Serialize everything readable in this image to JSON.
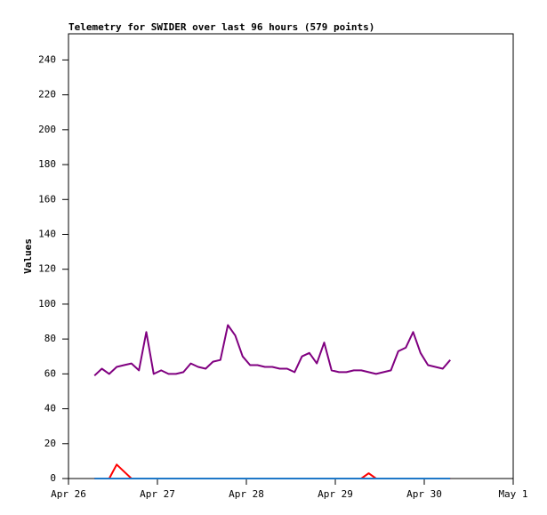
{
  "chart_data": {
    "type": "line",
    "title": "Telemetry for SWIDER over last 96 hours (579 points)",
    "y_label": "Values",
    "x": [
      7,
      9,
      11,
      13,
      15,
      17,
      19,
      21,
      23,
      25,
      27,
      29,
      31,
      33,
      35,
      37,
      39,
      41,
      43,
      45,
      47,
      49,
      51,
      53,
      55,
      57,
      59,
      61,
      63,
      65,
      67,
      69,
      71,
      73,
      75,
      77,
      79,
      81,
      83,
      85,
      87,
      89,
      91,
      93,
      95,
      97,
      99,
      101,
      103
    ],
    "xlim": [
      0,
      120
    ],
    "xticks": [
      {
        "value": 0,
        "label": "Apr 26"
      },
      {
        "value": 24,
        "label": "Apr 27"
      },
      {
        "value": 48,
        "label": "Apr 28"
      },
      {
        "value": 72,
        "label": "Apr 29"
      },
      {
        "value": 96,
        "label": "Apr 30"
      },
      {
        "value": 120,
        "label": "May 1"
      }
    ],
    "ylim": [
      0,
      255
    ],
    "yticks": [
      0,
      20,
      40,
      60,
      80,
      100,
      120,
      140,
      160,
      180,
      200,
      220,
      240
    ],
    "series": [
      {
        "color": "#800080",
        "values": [
          59,
          63,
          60,
          64,
          65,
          66,
          62,
          84,
          60,
          62,
          60,
          60,
          61,
          66,
          64,
          63,
          67,
          68,
          88,
          82,
          70,
          65,
          65,
          64,
          64,
          63,
          63,
          61,
          70,
          72,
          66,
          78,
          62,
          61,
          61,
          62,
          62,
          61,
          60,
          61,
          62,
          73,
          75,
          84,
          72,
          65,
          64,
          63,
          68
        ]
      },
      {
        "color": "#ff0000",
        "values": [
          0,
          0,
          0,
          8,
          4,
          0,
          0,
          0,
          0,
          0,
          0,
          0,
          0,
          0,
          0,
          0,
          0,
          0,
          0,
          0,
          0,
          0,
          0,
          0,
          0,
          0,
          0,
          0,
          0,
          0,
          0,
          0,
          0,
          0,
          0,
          0,
          0,
          3,
          0,
          0,
          0,
          0,
          0,
          0,
          0,
          0,
          0,
          0,
          0
        ]
      },
      {
        "color": "#1e78c8",
        "values": [
          0,
          0,
          0,
          0,
          0,
          0,
          0,
          0,
          0,
          0,
          0,
          0,
          0,
          0,
          0,
          0,
          0,
          0,
          0,
          0,
          0,
          0,
          0,
          0,
          0,
          0,
          0,
          0,
          0,
          0,
          0,
          0,
          0,
          0,
          0,
          0,
          0,
          0,
          0,
          0,
          0,
          0,
          0,
          0,
          0,
          0,
          0,
          0,
          0
        ]
      }
    ]
  }
}
